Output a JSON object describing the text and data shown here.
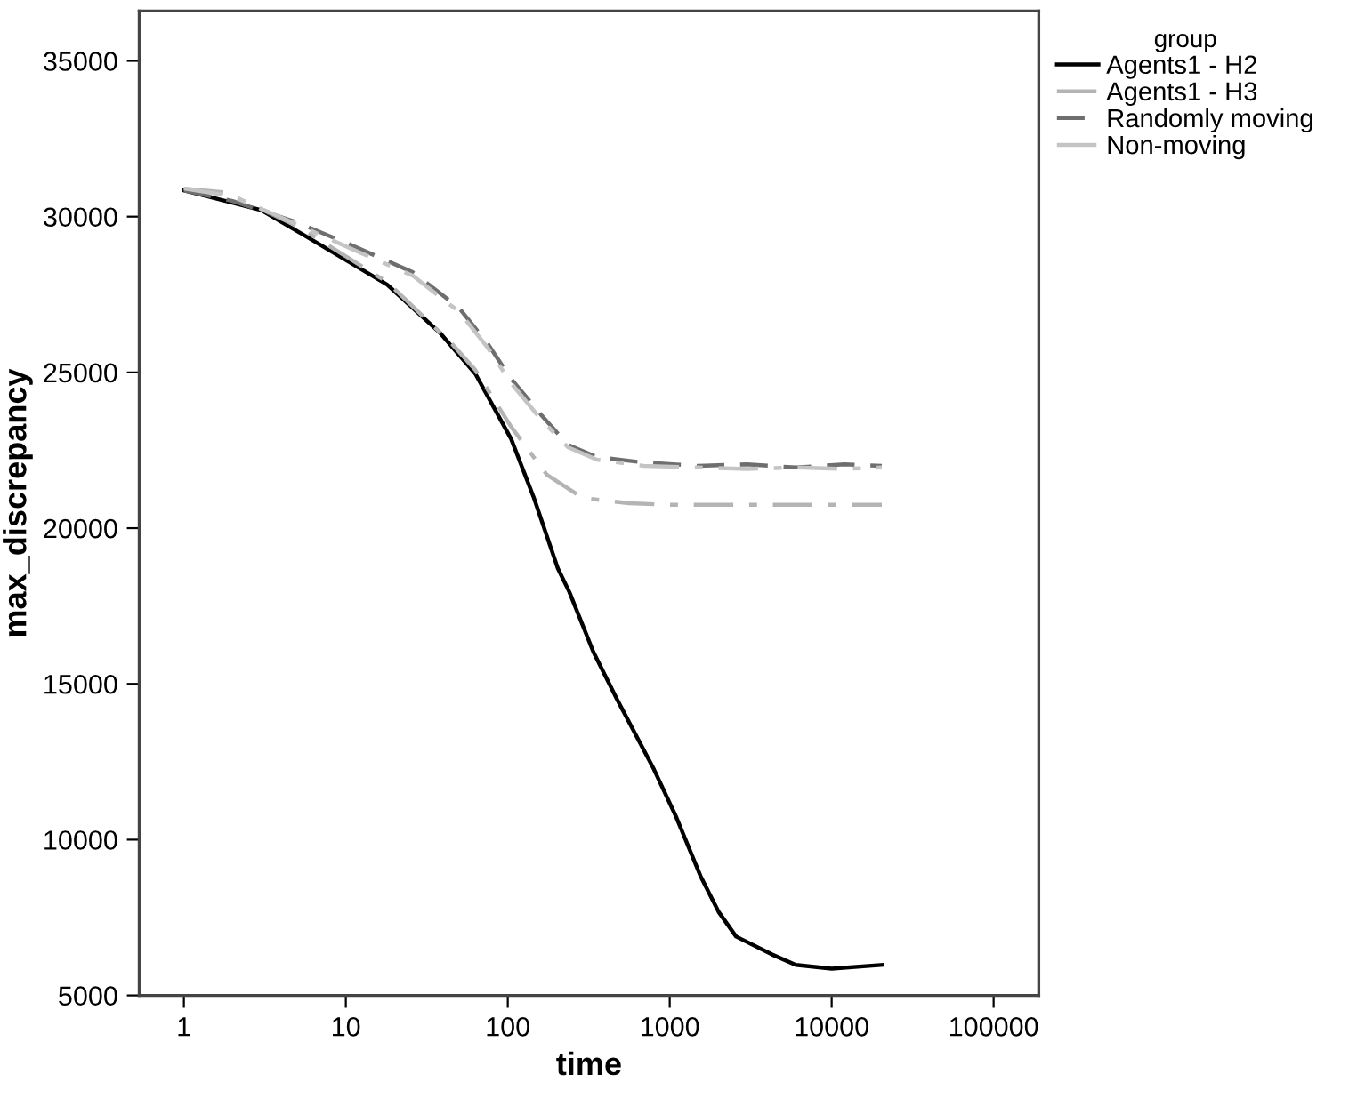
{
  "chart_data": {
    "type": "line",
    "xlabel": "time",
    "ylabel": "max_discrepancy",
    "legend_title": "group",
    "legend": "top right",
    "grid": false,
    "log": "x",
    "xlim": [
      0.53,
      190000
    ],
    "xticks": [
      1,
      10,
      100,
      1000,
      10000,
      100000
    ],
    "ylim": [
      5000,
      36600
    ],
    "yticks": [
      5000,
      10000,
      15000,
      20000,
      25000,
      30000,
      35000
    ],
    "series": [
      {
        "name": "Agents1 - H2",
        "color": "#000000",
        "line_style": "solid",
        "x": [
          1,
          3,
          5.5,
          18,
          38,
          63,
          105,
          145,
          204,
          240,
          338,
          470,
          800,
          1100,
          1550,
          2000,
          2570,
          4260,
          6000,
          10000,
          20400
        ],
        "values": [
          30840,
          30210,
          29410,
          27820,
          26280,
          24960,
          22860,
          20970,
          18700,
          17950,
          16020,
          14530,
          12250,
          10710,
          8830,
          7690,
          6890,
          6320,
          5980,
          5860,
          5980
        ]
      },
      {
        "name": "Agents1 - H3",
        "color": "#b4b4b4",
        "line_style": "dashdot",
        "x": [
          1,
          1.8,
          5,
          18,
          45,
          63,
          105,
          174,
          290,
          560,
          1000,
          5000,
          20400
        ],
        "values": [
          30900,
          30780,
          29700,
          27900,
          25930,
          25080,
          23250,
          21720,
          20970,
          20800,
          20750,
          20750,
          20750
        ]
      },
      {
        "name": "Randomly moving",
        "color": "#6e6e6e",
        "line_style": "dashed",
        "x": [
          1,
          2,
          5,
          11,
          26,
          50,
          75,
          105,
          160,
          235,
          355,
          690,
          1500,
          3000,
          6000,
          12000,
          20400
        ],
        "values": [
          30840,
          30500,
          29810,
          29070,
          28210,
          27070,
          25930,
          24790,
          23650,
          22680,
          22280,
          22110,
          22000,
          22050,
          21950,
          22050,
          22000
        ]
      },
      {
        "name": "Non-moving",
        "color": "#c4c4c4",
        "line_style": "dashdot",
        "x": [
          1,
          2,
          5,
          11,
          26,
          50,
          75,
          105,
          160,
          235,
          355,
          690,
          1500,
          3000,
          6000,
          12000,
          20400
        ],
        "values": [
          30900,
          30650,
          29750,
          28950,
          28100,
          26950,
          25800,
          24650,
          23500,
          22600,
          22200,
          22000,
          21950,
          21900,
          21950,
          21900,
          21950
        ]
      }
    ]
  }
}
